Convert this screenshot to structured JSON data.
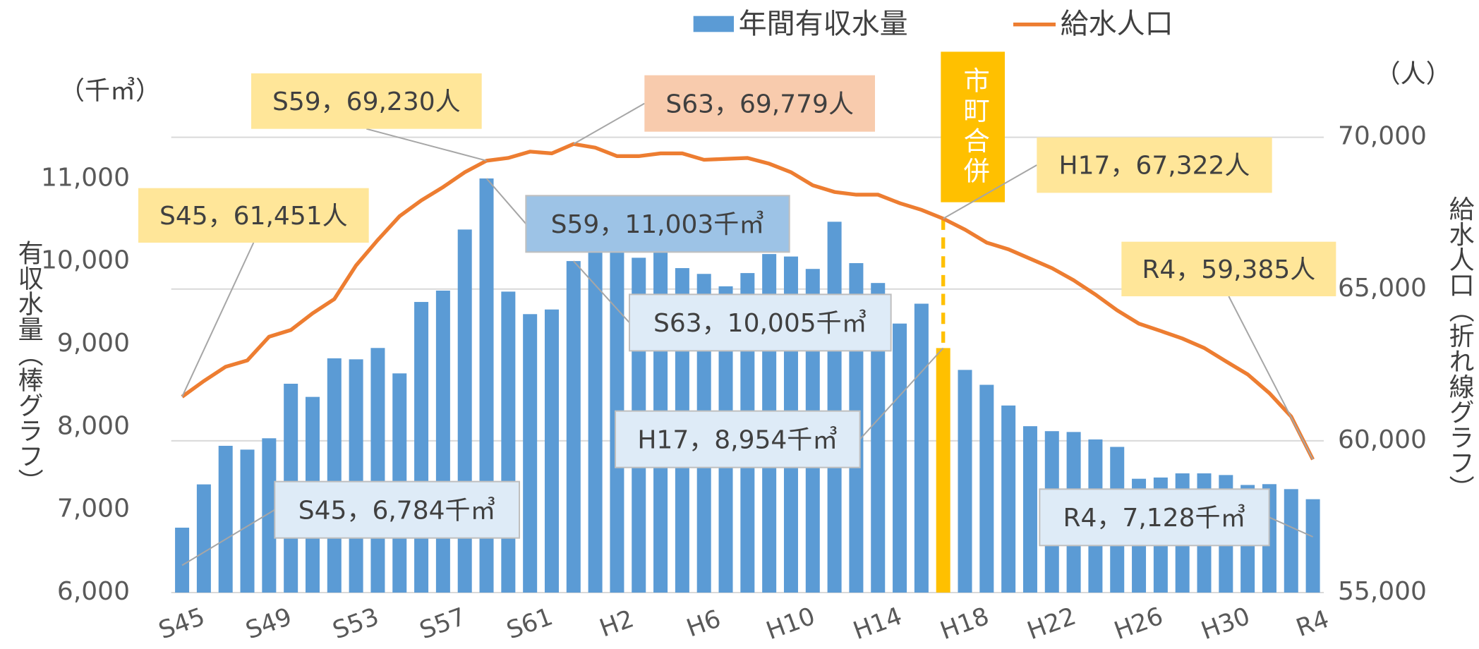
{
  "chart_data": {
    "type": "bar_line",
    "y_label": "有収水量（棒グラフ）",
    "y_unit": "（千㎥）",
    "y2_label": "給水人口（折れ線グラフ）",
    "y2_unit": "（人）",
    "categories": [
      "S45",
      null,
      null,
      null,
      "S49",
      null,
      null,
      null,
      "S53",
      null,
      null,
      null,
      "S57",
      null,
      null,
      null,
      "S61",
      null,
      null,
      null,
      "H2",
      null,
      null,
      null,
      "H6",
      null,
      null,
      null,
      "H10",
      null,
      null,
      null,
      "H14",
      null,
      null,
      null,
      "H18",
      null,
      null,
      null,
      "H22",
      null,
      null,
      null,
      "H26",
      null,
      null,
      null,
      "H30",
      null,
      null,
      null,
      "R4"
    ],
    "series": [
      {
        "name": "年間有収水量",
        "type": "bar",
        "color": "#5b9bd5",
        "values": [
          6784,
          7307,
          7773,
          7727,
          7864,
          8523,
          8364,
          8830,
          8818,
          8955,
          8648,
          9511,
          9648,
          10386,
          11003,
          9636,
          9364,
          9420,
          10005,
          10150,
          10150,
          10045,
          10110,
          9920,
          9850,
          9700,
          9860,
          10090,
          10060,
          9910,
          10480,
          9980,
          9740,
          9250,
          9490,
          8954,
          8690,
          8510,
          8260,
          8010,
          7950,
          7940,
          7850,
          7760,
          7375,
          7390,
          7440,
          7440,
          7420,
          7300,
          7310,
          7250,
          7128
        ]
      },
      {
        "name": "給水人口",
        "type": "line",
        "axis": "y2",
        "color": "#ed7d31",
        "values": [
          61451,
          61970,
          62440,
          62650,
          63430,
          63650,
          64200,
          64670,
          65780,
          66620,
          67400,
          67920,
          68360,
          68850,
          69230,
          69320,
          69530,
          69470,
          69779,
          69660,
          69380,
          69380,
          69470,
          69470,
          69260,
          69290,
          69320,
          69130,
          68850,
          68420,
          68200,
          68110,
          68110,
          67830,
          67610,
          67322,
          66960,
          66530,
          66310,
          66000,
          65690,
          65290,
          64820,
          64300,
          63860,
          63620,
          63370,
          63060,
          62620,
          62190,
          61570,
          60800,
          59385
        ]
      }
    ],
    "ylim": [
      6000,
      11500
    ],
    "yticks": [
      {
        "value": 6000,
        "label": "6,000"
      },
      {
        "value": 7000,
        "label": "7,000"
      },
      {
        "value": 8000,
        "label": "8,000"
      },
      {
        "value": 9000,
        "label": "9,000"
      },
      {
        "value": 10000,
        "label": "10,000"
      },
      {
        "value": 11000,
        "label": "11,000"
      }
    ],
    "y2lim": [
      55000,
      70000
    ],
    "y2ticks": [
      {
        "value": 55000,
        "label": "55,000"
      },
      {
        "value": 60000,
        "label": "60,000"
      },
      {
        "value": 65000,
        "label": "65,000"
      },
      {
        "value": 70000,
        "label": "70,000"
      }
    ],
    "grid": true,
    "merger": {
      "text": "市町合併",
      "color": "#ffc000"
    },
    "annotations": [
      "S45，61,451人",
      "S59，69,230人",
      "S63，69,779人",
      "H17，67,322人",
      "R4，59,385人",
      "S59，11,003千㎥",
      "S63，10,005千㎥",
      "H17，8,954千㎥",
      "S45，6,784千㎥",
      "R4，7,128千㎥"
    ]
  }
}
